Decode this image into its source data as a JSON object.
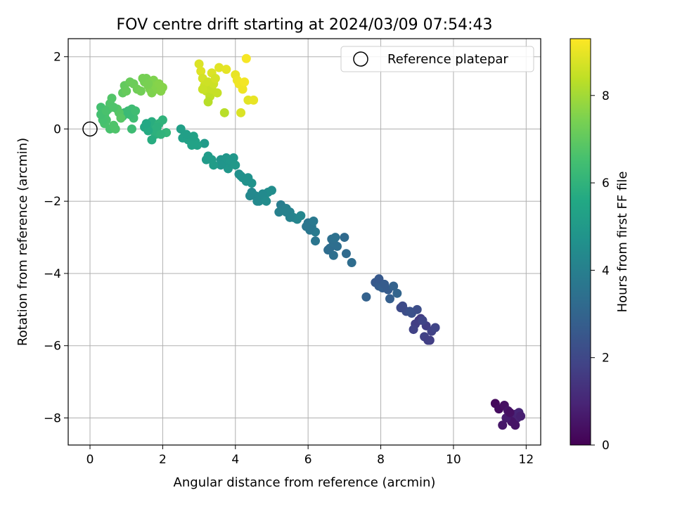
{
  "chart_data": {
    "type": "scatter",
    "title": "FOV centre drift starting at 2024/03/09 07:54:43",
    "xlabel": "Angular distance from reference (arcmin)",
    "ylabel": "Rotation from reference (arcmin)",
    "xlim": [
      -0.6,
      12.4
    ],
    "ylim": [
      -8.75,
      2.5
    ],
    "x_ticks": [
      0,
      2,
      4,
      6,
      8,
      10,
      12
    ],
    "y_ticks": [
      2,
      0,
      -2,
      -4,
      -6,
      -8
    ],
    "x_tick_labels": [
      "0",
      "2",
      "4",
      "6",
      "8",
      "10",
      "12"
    ],
    "y_tick_labels": [
      "2",
      "0",
      "−2",
      "−4",
      "−6",
      "−8"
    ],
    "grid": true,
    "legend": {
      "position": "top-right",
      "entries": [
        {
          "label": "Reference platepar",
          "marker": "open-circle"
        }
      ]
    },
    "colorbar": {
      "label": "Hours from first FF file",
      "colormap": "viridis",
      "range": [
        0,
        9.3
      ],
      "ticks": [
        0,
        2,
        4,
        6,
        8
      ],
      "tick_labels": [
        "0",
        "2",
        "4",
        "6",
        "8"
      ]
    },
    "reference_point": {
      "x": 0,
      "y": 0
    },
    "series": [
      {
        "values": [
          [
            11.15,
            -7.6,
            0.2
          ],
          [
            11.25,
            -7.75,
            0.3
          ],
          [
            11.4,
            -7.65,
            0.4
          ],
          [
            11.5,
            -7.8,
            0.5
          ],
          [
            11.55,
            -7.95,
            0.6
          ],
          [
            11.65,
            -8.05,
            0.7
          ],
          [
            11.7,
            -7.9,
            0.8
          ],
          [
            11.75,
            -8.0,
            0.9
          ],
          [
            11.8,
            -7.85,
            1.0
          ],
          [
            11.6,
            -8.1,
            0.5
          ],
          [
            11.35,
            -8.2,
            0.6
          ],
          [
            11.45,
            -8.0,
            0.7
          ],
          [
            11.7,
            -8.2,
            0.5
          ],
          [
            11.55,
            -7.85,
            0.4
          ],
          [
            11.85,
            -7.95,
            0.8
          ],
          [
            9.1,
            -5.25,
            1.6
          ],
          [
            9.25,
            -5.45,
            1.7
          ],
          [
            9.4,
            -5.6,
            1.8
          ],
          [
            9.5,
            -5.5,
            1.9
          ],
          [
            9.35,
            -5.85,
            1.7
          ],
          [
            9.2,
            -5.75,
            1.8
          ],
          [
            9.05,
            -5.3,
            1.6
          ],
          [
            8.95,
            -5.4,
            1.7
          ],
          [
            8.9,
            -5.55,
            1.8
          ],
          [
            9.15,
            -5.3,
            1.9
          ],
          [
            9.3,
            -5.85,
            1.75
          ],
          [
            8.55,
            -4.95,
            2.1
          ],
          [
            8.7,
            -5.05,
            2.2
          ],
          [
            8.85,
            -5.1,
            2.3
          ],
          [
            9.0,
            -5.0,
            2.2
          ],
          [
            8.6,
            -4.9,
            2.1
          ],
          [
            8.8,
            -5.05,
            2.3
          ],
          [
            7.85,
            -4.25,
            2.6
          ],
          [
            7.95,
            -4.35,
            2.7
          ],
          [
            8.05,
            -4.4,
            2.8
          ],
          [
            8.2,
            -4.45,
            2.7
          ],
          [
            8.35,
            -4.35,
            2.9
          ],
          [
            8.25,
            -4.7,
            2.8
          ],
          [
            8.45,
            -4.55,
            3.0
          ],
          [
            7.95,
            -4.15,
            2.6
          ],
          [
            8.1,
            -4.3,
            2.7
          ],
          [
            7.6,
            -4.65,
            2.9
          ],
          [
            7.05,
            -3.45,
            3.2
          ],
          [
            7.2,
            -3.7,
            3.3
          ],
          [
            7.0,
            -3.0,
            3.2
          ],
          [
            6.6,
            -3.3,
            3.3
          ],
          [
            6.7,
            -3.15,
            3.4
          ],
          [
            6.8,
            -3.25,
            3.35
          ],
          [
            6.65,
            -3.05,
            3.4
          ],
          [
            6.75,
            -3.0,
            3.45
          ],
          [
            6.7,
            -3.5,
            3.4
          ],
          [
            6.55,
            -3.35,
            3.3
          ],
          [
            6.0,
            -2.6,
            3.6
          ],
          [
            6.1,
            -2.7,
            3.7
          ],
          [
            6.2,
            -2.85,
            3.8
          ],
          [
            6.05,
            -2.8,
            3.7
          ],
          [
            6.2,
            -3.1,
            3.6
          ],
          [
            6.15,
            -2.55,
            3.75
          ],
          [
            5.95,
            -2.7,
            3.65
          ],
          [
            5.25,
            -2.1,
            3.9
          ],
          [
            5.4,
            -2.2,
            4.0
          ],
          [
            5.5,
            -2.3,
            4.1
          ],
          [
            5.6,
            -2.45,
            4.2
          ],
          [
            5.7,
            -2.5,
            4.2
          ],
          [
            5.8,
            -2.4,
            4.25
          ],
          [
            5.5,
            -2.45,
            4.1
          ],
          [
            5.2,
            -2.3,
            4.0
          ],
          [
            5.4,
            -2.3,
            4.05
          ],
          [
            4.45,
            -1.75,
            4.3
          ],
          [
            4.55,
            -1.85,
            4.35
          ],
          [
            4.65,
            -2.0,
            4.4
          ],
          [
            4.8,
            -1.9,
            4.45
          ],
          [
            4.9,
            -1.75,
            4.5
          ],
          [
            4.75,
            -1.8,
            4.4
          ],
          [
            4.6,
            -2.0,
            4.35
          ],
          [
            4.4,
            -1.85,
            4.3
          ],
          [
            4.85,
            -2.0,
            4.45
          ],
          [
            5.0,
            -1.7,
            4.5
          ],
          [
            4.1,
            -1.25,
            4.6
          ],
          [
            4.2,
            -1.35,
            4.65
          ],
          [
            4.35,
            -1.35,
            4.7
          ],
          [
            4.45,
            -1.5,
            4.75
          ],
          [
            4.3,
            -1.45,
            4.7
          ],
          [
            4.15,
            -1.3,
            4.65
          ],
          [
            3.6,
            -0.85,
            4.8
          ],
          [
            3.7,
            -0.95,
            4.85
          ],
          [
            3.8,
            -1.1,
            4.9
          ],
          [
            3.95,
            -0.8,
            4.9
          ],
          [
            3.6,
            -1.0,
            4.8
          ],
          [
            3.9,
            -0.95,
            4.85
          ],
          [
            3.75,
            -0.8,
            4.85
          ],
          [
            3.85,
            -0.85,
            4.9
          ],
          [
            4.0,
            -1.0,
            4.95
          ],
          [
            3.15,
            -0.4,
            5.0
          ],
          [
            3.25,
            -0.75,
            5.05
          ],
          [
            3.35,
            -0.85,
            5.1
          ],
          [
            3.4,
            -1.0,
            5.1
          ],
          [
            3.2,
            -0.85,
            5.05
          ],
          [
            2.5,
            0.0,
            5.2
          ],
          [
            2.6,
            -0.2,
            5.25
          ],
          [
            2.7,
            -0.3,
            5.3
          ],
          [
            2.8,
            -0.45,
            5.35
          ],
          [
            2.9,
            -0.35,
            5.35
          ],
          [
            2.85,
            -0.2,
            5.3
          ],
          [
            2.55,
            -0.25,
            5.25
          ],
          [
            2.65,
            -0.15,
            5.2
          ],
          [
            2.95,
            -0.45,
            5.35
          ],
          [
            1.5,
            0.05,
            5.6
          ],
          [
            1.6,
            0.1,
            5.7
          ],
          [
            1.7,
            0.2,
            5.8
          ],
          [
            1.75,
            -0.05,
            5.85
          ],
          [
            1.8,
            -0.15,
            5.9
          ],
          [
            1.9,
            0.15,
            6.0
          ],
          [
            2.0,
            0.25,
            6.0
          ],
          [
            2.1,
            -0.1,
            6.1
          ],
          [
            1.7,
            -0.3,
            5.75
          ],
          [
            1.6,
            -0.05,
            5.65
          ],
          [
            1.85,
            0.05,
            5.9
          ],
          [
            1.95,
            -0.15,
            6.0
          ],
          [
            1.55,
            0.15,
            5.6
          ],
          [
            0.95,
            0.45,
            6.2
          ],
          [
            1.05,
            0.5,
            6.3
          ],
          [
            1.15,
            0.55,
            6.35
          ],
          [
            1.2,
            0.3,
            6.4
          ],
          [
            1.1,
            0.4,
            6.3
          ],
          [
            1.25,
            0.5,
            6.4
          ],
          [
            0.9,
            0.35,
            6.25
          ],
          [
            1.15,
            0.0,
            6.35
          ],
          [
            0.3,
            0.6,
            6.5
          ],
          [
            0.35,
            0.45,
            6.55
          ],
          [
            0.4,
            0.35,
            6.6
          ],
          [
            0.45,
            0.25,
            6.6
          ],
          [
            0.5,
            0.55,
            6.65
          ],
          [
            0.55,
            0.7,
            6.7
          ],
          [
            0.6,
            0.85,
            6.75
          ],
          [
            0.55,
            0.0,
            6.6
          ],
          [
            0.65,
            0.1,
            6.7
          ],
          [
            0.7,
            0.0,
            6.7
          ],
          [
            0.8,
            0.45,
            6.8
          ],
          [
            0.85,
            0.3,
            6.85
          ],
          [
            0.75,
            0.55,
            6.8
          ],
          [
            0.4,
            0.15,
            6.6
          ],
          [
            0.35,
            0.25,
            6.55
          ],
          [
            0.3,
            0.4,
            6.5
          ],
          [
            0.45,
            0.5,
            6.6
          ],
          [
            0.65,
            0.6,
            6.7
          ],
          [
            0.9,
            1.0,
            7.0
          ],
          [
            0.95,
            1.2,
            7.05
          ],
          [
            1.0,
            1.05,
            7.1
          ],
          [
            1.1,
            1.3,
            7.15
          ],
          [
            1.2,
            1.25,
            7.2
          ],
          [
            1.3,
            1.1,
            7.25
          ],
          [
            1.4,
            1.05,
            7.3
          ],
          [
            1.5,
            1.3,
            7.35
          ],
          [
            1.55,
            1.4,
            7.35
          ],
          [
            1.6,
            1.2,
            7.4
          ],
          [
            1.65,
            1.1,
            7.45
          ],
          [
            1.7,
            1.0,
            7.5
          ],
          [
            1.75,
            1.35,
            7.5
          ],
          [
            1.8,
            1.2,
            7.55
          ],
          [
            1.85,
            1.1,
            7.55
          ],
          [
            1.95,
            1.05,
            7.6
          ],
          [
            2.0,
            1.15,
            7.6
          ],
          [
            1.45,
            1.4,
            7.35
          ],
          [
            1.6,
            1.25,
            7.4
          ],
          [
            1.9,
            1.25,
            7.6
          ],
          [
            3.0,
            1.8,
            8.8
          ],
          [
            3.05,
            1.6,
            8.85
          ],
          [
            3.1,
            1.4,
            8.7
          ],
          [
            3.15,
            1.2,
            8.6
          ],
          [
            3.2,
            1.05,
            8.5
          ],
          [
            3.25,
            1.3,
            8.6
          ],
          [
            3.3,
            0.9,
            8.4
          ],
          [
            3.35,
            1.1,
            8.5
          ],
          [
            3.4,
            1.25,
            8.6
          ],
          [
            3.5,
            1.0,
            8.5
          ],
          [
            3.25,
            0.75,
            8.3
          ],
          [
            3.35,
            1.55,
            8.8
          ],
          [
            3.45,
            1.4,
            8.7
          ],
          [
            3.55,
            1.7,
            8.9
          ],
          [
            3.75,
            1.65,
            8.95
          ],
          [
            3.7,
            0.45,
            8.3
          ],
          [
            4.0,
            1.5,
            9.0
          ],
          [
            4.05,
            1.35,
            9.05
          ],
          [
            4.1,
            1.25,
            9.1
          ],
          [
            4.2,
            1.1,
            9.1
          ],
          [
            4.25,
            1.3,
            9.15
          ],
          [
            4.3,
            1.95,
            9.2
          ],
          [
            4.35,
            0.8,
            8.9
          ],
          [
            4.5,
            0.8,
            9.0
          ],
          [
            4.15,
            0.45,
            8.8
          ],
          [
            3.1,
            1.1,
            8.55
          ]
        ]
      }
    ]
  }
}
